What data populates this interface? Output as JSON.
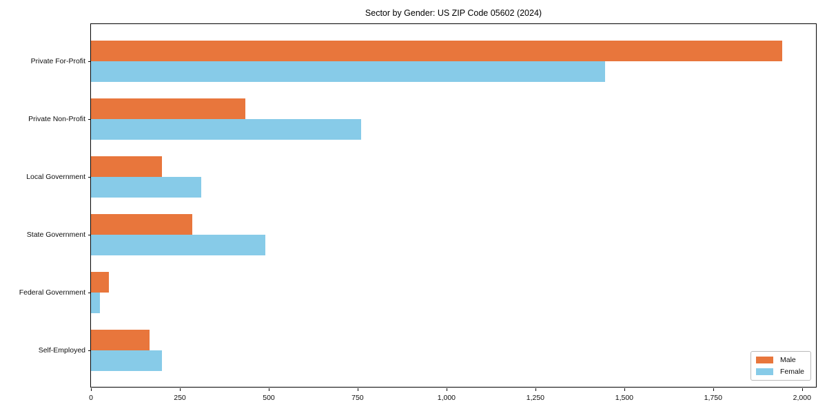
{
  "figure": {
    "title": "Sector by Gender: US ZIP Code 05602 (2024)"
  },
  "chart_data": {
    "type": "bar",
    "orientation": "horizontal",
    "title": "Sector by Gender: US ZIP Code 05602 (2024)",
    "xlabel": "",
    "ylabel": "",
    "categories": [
      "Private For-Profit",
      "Private Non-Profit",
      "Local Government",
      "State Government",
      "Federal Government",
      "Self-Employed"
    ],
    "series": [
      {
        "name": "Male",
        "color": "#e8763c",
        "values": [
          1945,
          435,
          200,
          285,
          50,
          165
        ]
      },
      {
        "name": "Female",
        "color": "#87cbe8",
        "values": [
          1445,
          760,
          310,
          490,
          25,
          200
        ]
      }
    ],
    "xlim": [
      0,
      2043
    ],
    "xticks": [
      0,
      250,
      500,
      750,
      1000,
      1250,
      1500,
      1750,
      2000
    ],
    "xtick_labels": [
      "0",
      "250",
      "500",
      "750",
      "1,000",
      "1,250",
      "1,500",
      "1,750",
      "2,000"
    ],
    "grid": false,
    "legend": {
      "position": "lower right",
      "entries": [
        "Male",
        "Female"
      ]
    }
  }
}
